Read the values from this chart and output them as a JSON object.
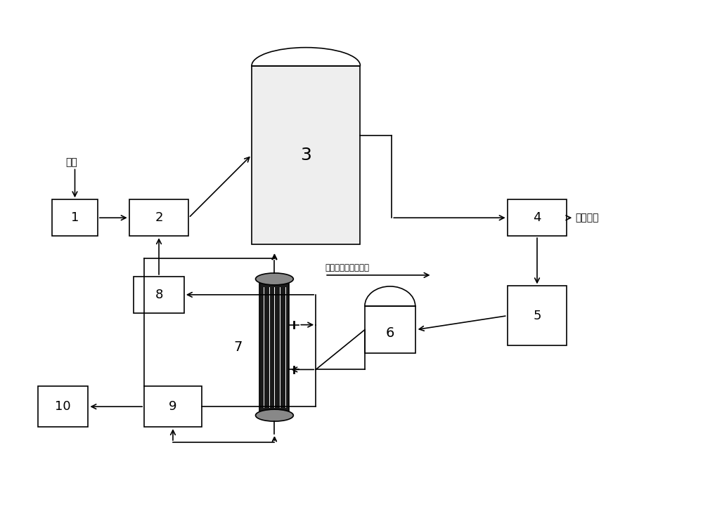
{
  "bg_color": "#ffffff",
  "line_color": "#000000",
  "box_color": "#ffffff",
  "tank3_fill": "#f0f0f0",
  "labels": {
    "1": "1",
    "2": "2",
    "3": "3",
    "4": "4",
    "5": "5",
    "6": "6",
    "7": "7",
    "8": "8",
    "9": "9",
    "10": "10"
  },
  "text_jinliao": "进料",
  "text_zhaozha": "沼渣利用",
  "text_duoyu": "多余膜侧液达标排放",
  "font_size_label": 14,
  "font_size_anno": 9
}
